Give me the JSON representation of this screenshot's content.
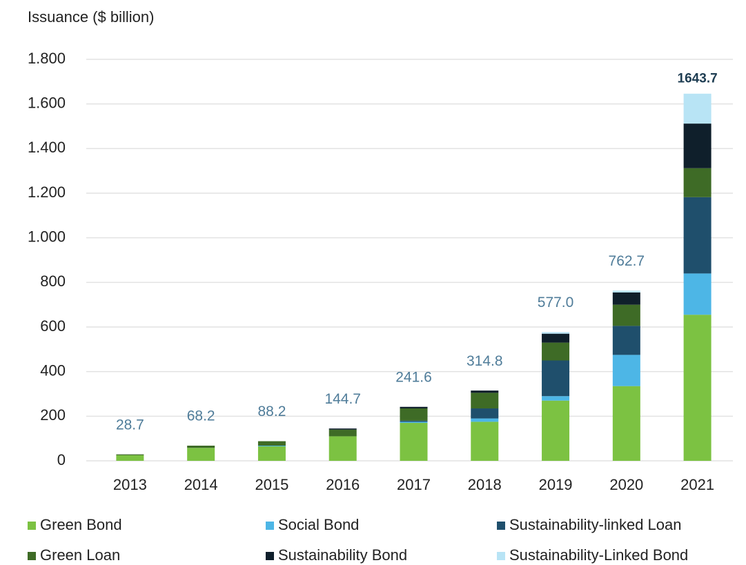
{
  "chart_data": {
    "type": "stacked-bar",
    "y_label": "Issuance ($ billion)",
    "categories": [
      "2013",
      "2014",
      "2015",
      "2016",
      "2017",
      "2018",
      "2019",
      "2020",
      "2021"
    ],
    "series": [
      {
        "name": "Green Bond",
        "color": "#7cc242",
        "values": [
          25,
          58,
          65,
          110,
          170,
          175,
          270,
          335,
          655
        ]
      },
      {
        "name": "Social Bond",
        "color": "#4db6e6",
        "values": [
          0,
          0,
          3,
          0,
          5,
          15,
          20,
          140,
          185
        ]
      },
      {
        "name": "Sustainability-linked Loan",
        "color": "#1f4f6c",
        "values": [
          0,
          0,
          0,
          0,
          5,
          45,
          160,
          130,
          342
        ]
      },
      {
        "name": "Green Loan",
        "color": "#3e6b26",
        "values": [
          4,
          10,
          20,
          30,
          55,
          70,
          80,
          95,
          130
        ]
      },
      {
        "name": "Sustainability Bond",
        "color": "#0f1f2b",
        "values": [
          0,
          0,
          0,
          5,
          7,
          10,
          40,
          55,
          200
        ]
      },
      {
        "name": "Sustainability-Linked Bond",
        "color": "#b8e4f5",
        "values": [
          0,
          0,
          0,
          0,
          0,
          0,
          7,
          8,
          134
        ]
      }
    ],
    "totals": {
      "values": [
        28.7,
        68.2,
        88.2,
        144.7,
        241.6,
        314.8,
        577,
        762.7,
        1643.7
      ],
      "value_labels": [
        "28.7",
        "68.2",
        "88.2",
        "144.7",
        "241.6",
        "314.8",
        "577.0",
        "762.7",
        "1643.7"
      ]
    },
    "ylim": [
      0,
      1800
    ],
    "yticks": [
      0,
      200,
      400,
      600,
      800,
      {
        "value": 1000,
        "label": "1.000"
      },
      {
        "value": 1200,
        "label": "1.200"
      },
      {
        "value": 1400,
        "label": "1.400"
      },
      {
        "value": 1600,
        "label": "1.600"
      },
      {
        "value": 1800,
        "label": "1.800"
      }
    ],
    "grid": true
  }
}
